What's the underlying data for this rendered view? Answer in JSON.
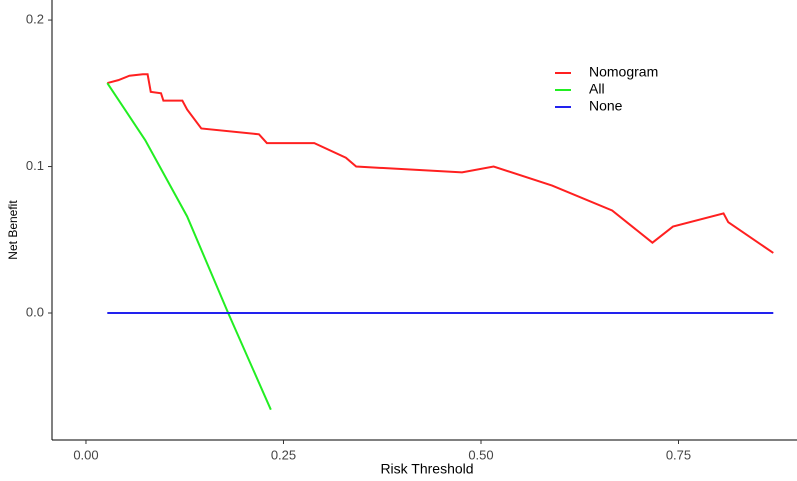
{
  "chart_data": {
    "type": "line",
    "xlabel": "Risk Threshold",
    "ylabel": "Net Benefit",
    "xlim": [
      -0.043,
      0.9
    ],
    "ylim": [
      -0.0867,
      0.2137
    ],
    "xticks": [
      {
        "value": 0,
        "label": "0.00"
      },
      {
        "value": 0.25,
        "label": "0.25"
      },
      {
        "value": 0.5,
        "label": "0.50"
      },
      {
        "value": 0.75,
        "label": "0.75"
      }
    ],
    "yticks": [
      {
        "value": 0,
        "label": "0.0"
      },
      0.1,
      0.2
    ],
    "grid": false,
    "legend": "top-right",
    "series": [
      {
        "name": "Nomogram",
        "color": "#ff2020",
        "x": [
          0.027,
          0.041,
          0.055,
          0.072,
          0.078,
          0.082,
          0.095,
          0.098,
          0.122,
          0.128,
          0.146,
          0.219,
          0.229,
          0.289,
          0.329,
          0.342,
          0.476,
          0.516,
          0.59,
          0.666,
          0.717,
          0.743,
          0.807,
          0.813,
          0.87
        ],
        "values": [
          0.157,
          0.159,
          0.162,
          0.163,
          0.163,
          0.151,
          0.15,
          0.145,
          0.145,
          0.139,
          0.126,
          0.122,
          0.116,
          0.116,
          0.106,
          0.1,
          0.096,
          0.1,
          0.087,
          0.07,
          0.048,
          0.059,
          0.068,
          0.062,
          0.041
        ]
      },
      {
        "name": "All",
        "color": "#22ee22",
        "x": [
          0.027,
          0.075,
          0.128,
          0.18,
          0.234
        ],
        "values": [
          0.157,
          0.118,
          0.066,
          0.0,
          -0.066
        ]
      },
      {
        "name": "None",
        "color": "#2222ee",
        "x": [
          0.027,
          0.87
        ],
        "values": [
          0,
          0
        ]
      }
    ]
  }
}
